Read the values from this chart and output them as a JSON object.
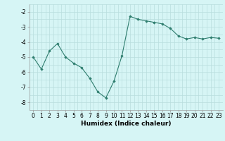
{
  "x": [
    0,
    1,
    2,
    3,
    4,
    5,
    6,
    7,
    8,
    9,
    10,
    11,
    12,
    13,
    14,
    15,
    16,
    17,
    18,
    19,
    20,
    21,
    22,
    23
  ],
  "y": [
    -5.0,
    -5.8,
    -4.6,
    -4.1,
    -5.0,
    -5.4,
    -5.7,
    -6.4,
    -7.3,
    -7.7,
    -6.6,
    -4.9,
    -2.3,
    -2.5,
    -2.6,
    -2.7,
    -2.8,
    -3.1,
    -3.6,
    -3.8,
    -3.7,
    -3.8,
    -3.7,
    -3.75
  ],
  "line_color": "#2e7d6e",
  "marker": "D",
  "marker_size": 1.8,
  "bg_color": "#d6f5f5",
  "grid_color": "#b8dede",
  "xlabel": "Humidex (Indice chaleur)",
  "xlabel_fontsize": 6.5,
  "tick_fontsize": 5.5,
  "ylim": [
    -8.5,
    -1.5
  ],
  "xlim": [
    -0.5,
    23.5
  ],
  "yticks": [
    -8,
    -7,
    -6,
    -5,
    -4,
    -3,
    -2
  ],
  "xticks": [
    0,
    1,
    2,
    3,
    4,
    5,
    6,
    7,
    8,
    9,
    10,
    11,
    12,
    13,
    14,
    15,
    16,
    17,
    18,
    19,
    20,
    21,
    22,
    23
  ]
}
